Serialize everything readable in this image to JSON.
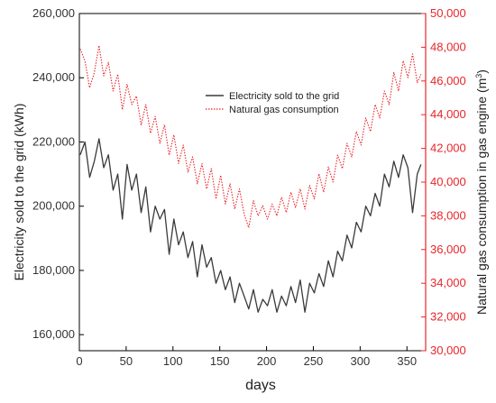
{
  "chart_data": {
    "type": "line",
    "xlabel": "days",
    "ylabel_left": "Electricity sold to the grid (kWh)",
    "ylabel_right": "Natural gas consumption in gas engine (m",
    "ylabel_right_sup": "3",
    "ylabel_right_close": ")",
    "xlim": [
      0,
      370
    ],
    "ylim_left": [
      155000,
      260000
    ],
    "ylim_right": [
      30000,
      50000
    ],
    "x_ticks": [
      0,
      50,
      100,
      150,
      200,
      250,
      300,
      350
    ],
    "x_tick_labels": [
      "0",
      "50",
      "100",
      "150",
      "200",
      "250",
      "300",
      "350"
    ],
    "y_left_ticks": [
      160000,
      180000,
      200000,
      220000,
      240000,
      260000
    ],
    "y_left_tick_labels": [
      "160,000",
      "180,000",
      "200,000",
      "220,000",
      "240,000",
      "260,000"
    ],
    "y_right_ticks": [
      30000,
      32000,
      34000,
      36000,
      38000,
      40000,
      42000,
      44000,
      46000,
      48000,
      50000
    ],
    "y_right_tick_labels": [
      "30,000",
      "32,000",
      "34,000",
      "36,000",
      "38,000",
      "40,000",
      "42,000",
      "44,000",
      "46,000",
      "48,000",
      "50,000"
    ],
    "grid": false,
    "legend_position": "top-center",
    "colors": {
      "electricity": "#3a3a3a",
      "gas": "#e8262a",
      "right_axis": "#e8262a"
    },
    "series": [
      {
        "name": "Electricity sold to the grid",
        "axis": "left",
        "style": "solid",
        "x": [
          1,
          6,
          11,
          16,
          21,
          26,
          31,
          36,
          41,
          46,
          51,
          56,
          61,
          66,
          71,
          76,
          81,
          86,
          91,
          96,
          101,
          106,
          111,
          116,
          121,
          126,
          131,
          136,
          141,
          146,
          151,
          156,
          161,
          166,
          171,
          176,
          181,
          186,
          191,
          196,
          201,
          206,
          211,
          216,
          221,
          226,
          231,
          236,
          241,
          246,
          251,
          256,
          261,
          266,
          271,
          276,
          281,
          286,
          291,
          296,
          301,
          306,
          311,
          316,
          321,
          326,
          331,
          336,
          341,
          346,
          351,
          356,
          361,
          365
        ],
        "values": [
          216000,
          220000,
          209000,
          214000,
          221000,
          212000,
          216000,
          205000,
          210000,
          196000,
          213000,
          205000,
          210000,
          198000,
          206000,
          192000,
          200000,
          196000,
          199000,
          185000,
          196000,
          188000,
          192000,
          184000,
          189000,
          178000,
          188000,
          181000,
          184000,
          176000,
          180000,
          174000,
          178000,
          170000,
          176000,
          172000,
          168000,
          174000,
          167000,
          171000,
          169000,
          174000,
          167000,
          172000,
          169000,
          175000,
          170000,
          177000,
          167000,
          176000,
          173000,
          179000,
          175000,
          183000,
          178000,
          186000,
          183000,
          191000,
          187000,
          195000,
          192000,
          200000,
          197000,
          204000,
          200000,
          210000,
          206000,
          214000,
          209000,
          216000,
          212000,
          198000,
          210000,
          213000
        ]
      },
      {
        "name": "Natural gas consumption",
        "axis": "right",
        "style": "dotted",
        "x": [
          1,
          6,
          11,
          16,
          21,
          26,
          31,
          36,
          41,
          46,
          51,
          56,
          61,
          66,
          71,
          76,
          81,
          86,
          91,
          96,
          101,
          106,
          111,
          116,
          121,
          126,
          131,
          136,
          141,
          146,
          151,
          156,
          161,
          166,
          171,
          176,
          181,
          186,
          191,
          196,
          201,
          206,
          211,
          216,
          221,
          226,
          231,
          236,
          241,
          246,
          251,
          256,
          261,
          266,
          271,
          276,
          281,
          286,
          291,
          296,
          301,
          306,
          311,
          316,
          321,
          326,
          331,
          336,
          341,
          346,
          351,
          356,
          361,
          365
        ],
        "values": [
          47900,
          47200,
          45600,
          46500,
          48100,
          46300,
          47100,
          45400,
          46400,
          44300,
          45800,
          44600,
          45100,
          43400,
          44600,
          42900,
          43900,
          42300,
          43400,
          41600,
          42800,
          41100,
          42200,
          40600,
          41500,
          39900,
          41100,
          39600,
          40800,
          39000,
          40400,
          38700,
          39900,
          38400,
          39600,
          38100,
          37300,
          38900,
          38000,
          38600,
          37800,
          38700,
          38000,
          39100,
          38200,
          39400,
          38500,
          39600,
          38400,
          39800,
          39000,
          40500,
          39400,
          40900,
          40000,
          41600,
          40800,
          42300,
          41500,
          43000,
          42200,
          43800,
          43000,
          44600,
          43800,
          45400,
          44600,
          46500,
          45400,
          47200,
          46200,
          47600,
          45900,
          46400
        ]
      }
    ]
  }
}
